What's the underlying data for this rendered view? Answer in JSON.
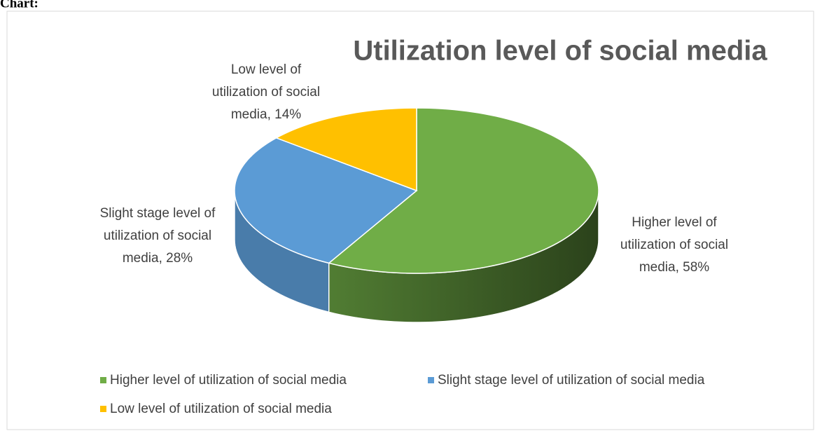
{
  "heading": "Chart:",
  "chart_data": {
    "type": "pie",
    "title": "Utilization level of social media",
    "categories": [
      "Higher level of utilization of social media",
      "Slight stage level of utilization of social media",
      "Low level of utilization of social media"
    ],
    "values": [
      58,
      28,
      14
    ],
    "value_labels": [
      "Higher level of utilization of social media, 58%",
      "Slight stage level of utilization of social media, 28%",
      "Low level of utilization of social media, 14%"
    ],
    "colors": [
      "#70ad47",
      "#5b9bd5",
      "#ffc000"
    ],
    "legend": "bottom"
  }
}
